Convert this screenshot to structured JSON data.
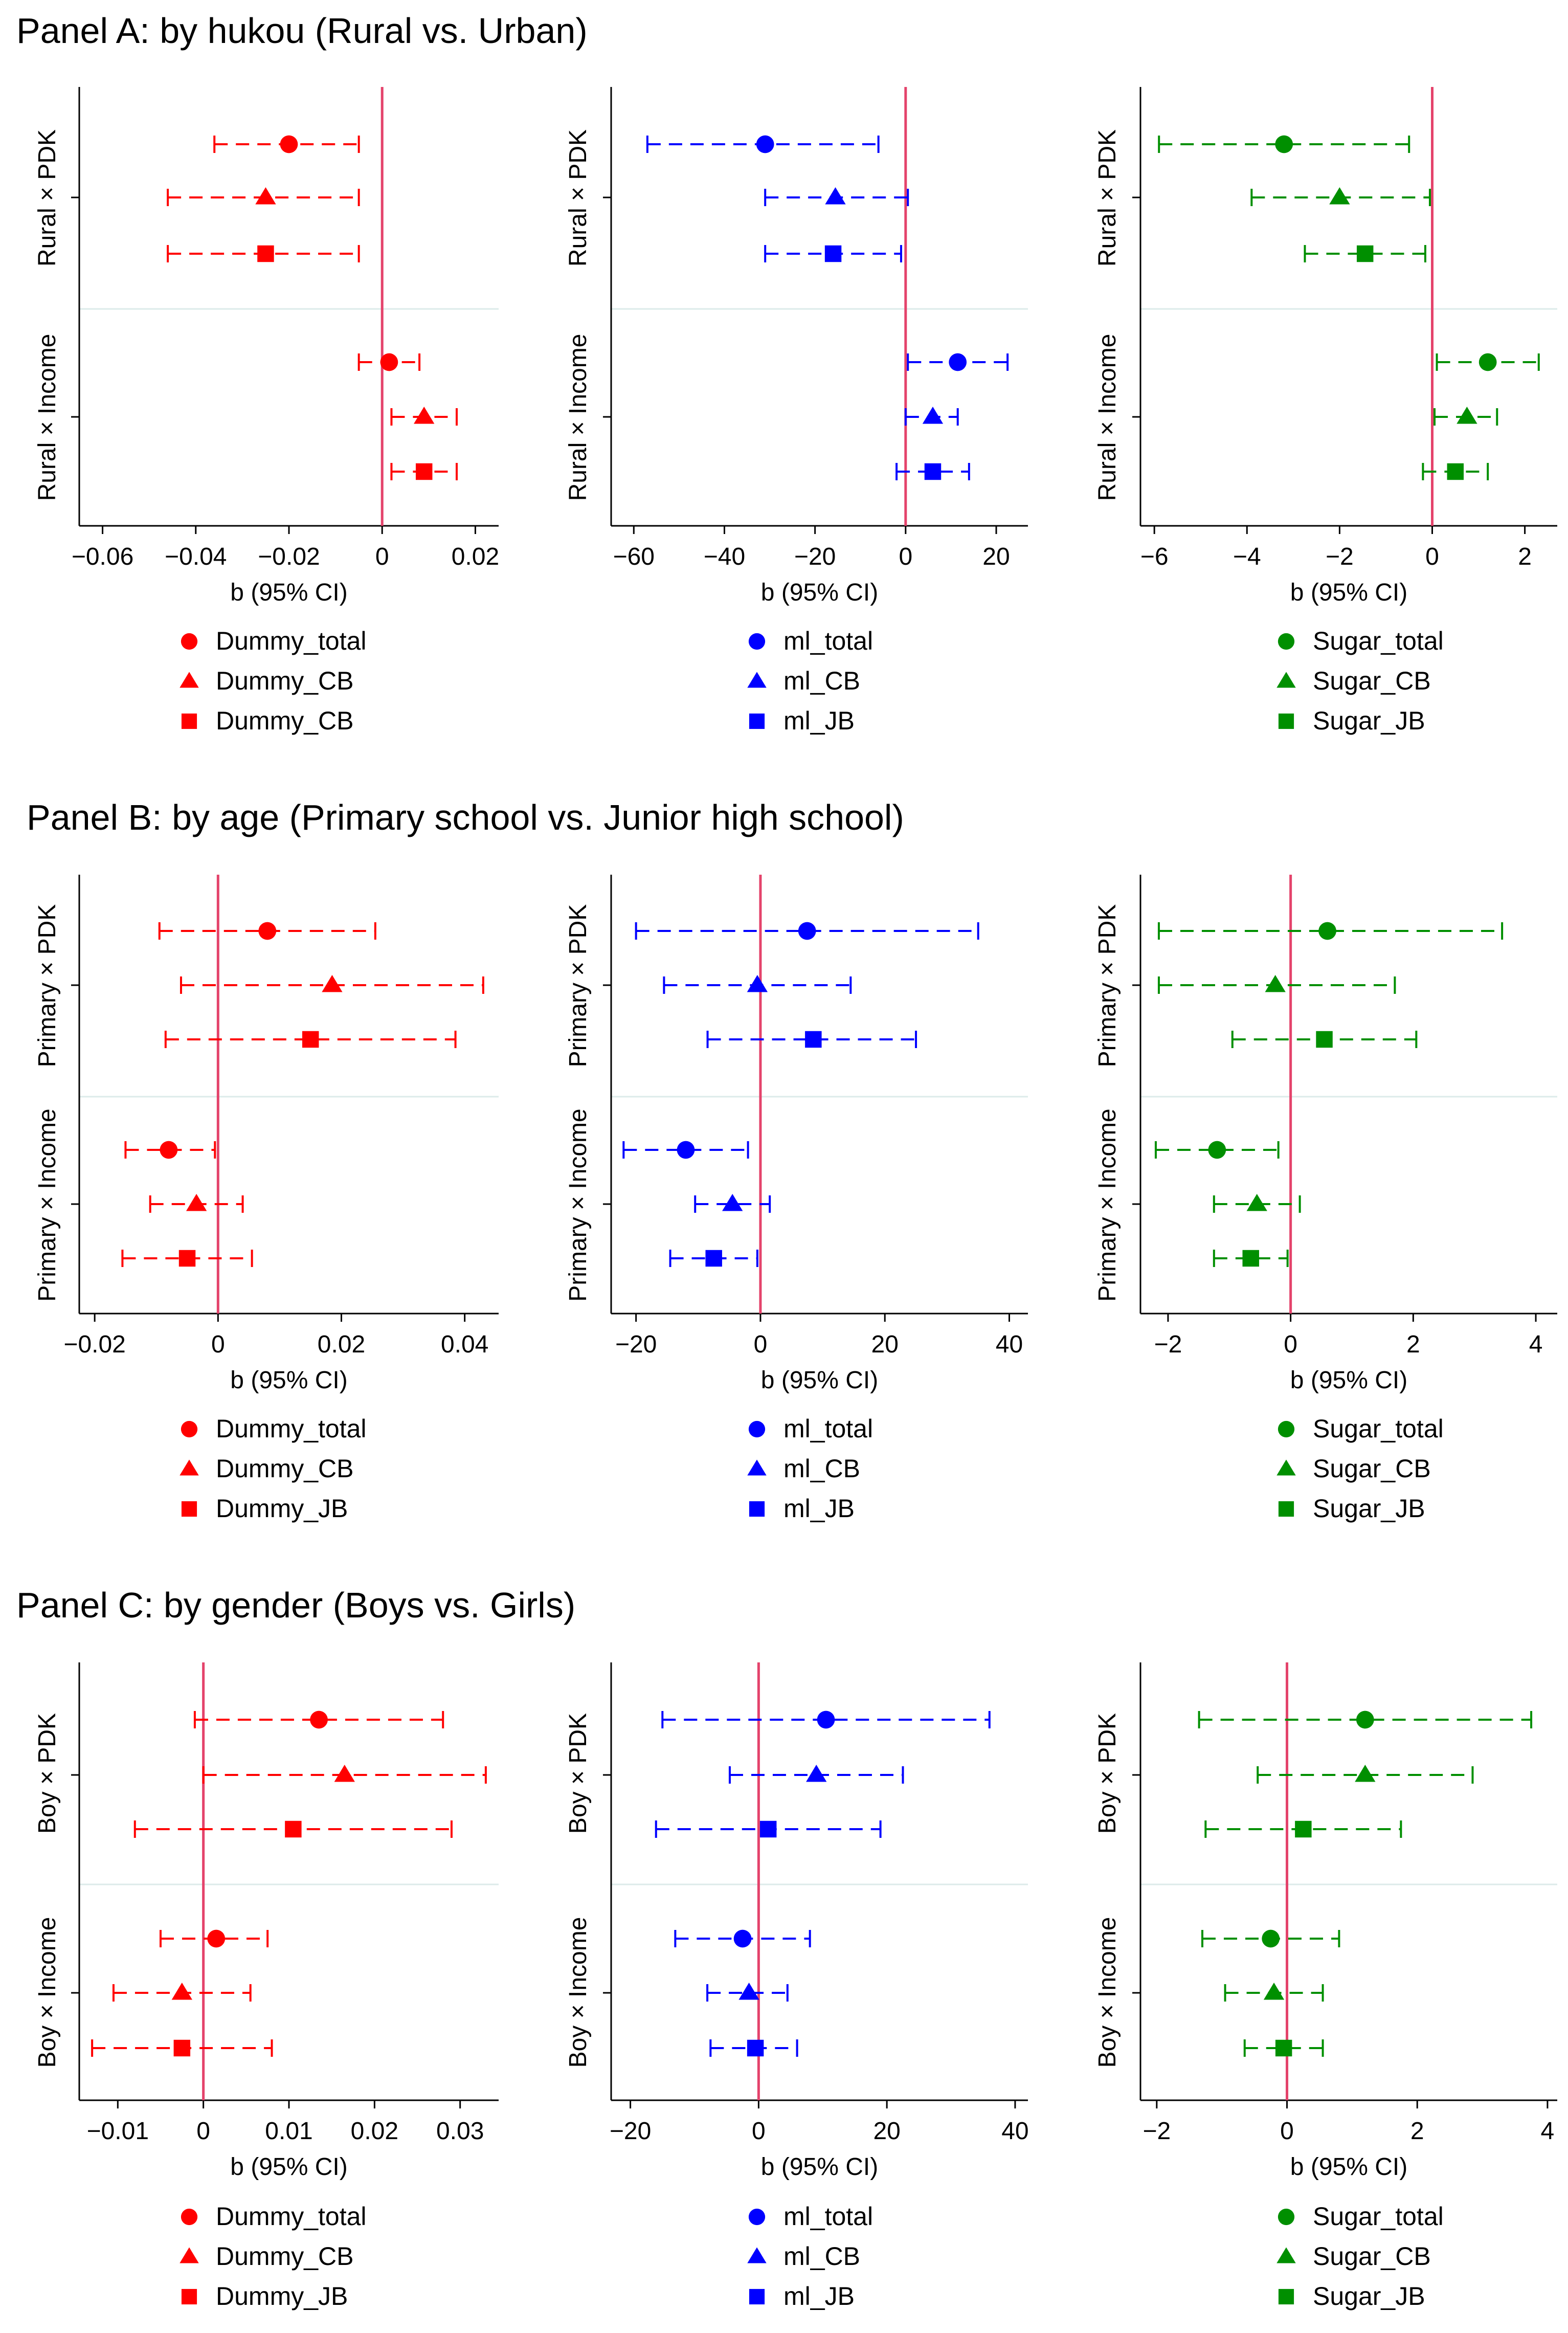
{
  "colors": {
    "red": "#ff0000",
    "blue": "#0000ff",
    "green": "#008f00",
    "zero_line": "#e4436b",
    "divider": "#dcebea"
  },
  "panels": [
    {
      "title": "Panel A: by hukou (Rural vs. Urban)"
    },
    {
      "title": "Panel B: by age (Primary school vs. Junior high school)"
    },
    {
      "title": "Panel C: by gender (Boys vs. Girls)"
    }
  ],
  "chart_data": [
    {
      "type": "coefficient_plot",
      "panel": 0,
      "column": 0,
      "color_key": "red",
      "xlabel": "b (95% CI)",
      "xlim": [
        -0.065,
        0.025
      ],
      "xticks": [
        {
          "v": -0.06,
          "label": "−0.06"
        },
        {
          "v": -0.04,
          "label": "−0.04"
        },
        {
          "v": -0.02,
          "label": "−0.02"
        },
        {
          "v": 0,
          "label": "0"
        },
        {
          "v": 0.02,
          "label": "0.02"
        }
      ],
      "groups": [
        "Rural × PDK",
        "Rural × Income"
      ],
      "legend": [
        "Dummy_total",
        "Dummy_CB",
        "Dummy_CB"
      ],
      "series": [
        {
          "name": "Dummy_total",
          "marker": "circle",
          "points": [
            {
              "b": -0.02,
              "lo": -0.036,
              "hi": -0.005
            },
            {
              "b": 0.0015,
              "lo": -0.005,
              "hi": 0.008
            }
          ]
        },
        {
          "name": "Dummy_CB",
          "marker": "triangle",
          "points": [
            {
              "b": -0.025,
              "lo": -0.046,
              "hi": -0.005
            },
            {
              "b": 0.009,
              "lo": 0.002,
              "hi": 0.016
            }
          ]
        },
        {
          "name": "Dummy_CB",
          "marker": "square",
          "points": [
            {
              "b": -0.025,
              "lo": -0.046,
              "hi": -0.005
            },
            {
              "b": 0.009,
              "lo": 0.002,
              "hi": 0.016
            }
          ]
        }
      ]
    },
    {
      "type": "coefficient_plot",
      "panel": 0,
      "column": 1,
      "color_key": "blue",
      "xlabel": "b (95% CI)",
      "xlim": [
        -65,
        27
      ],
      "xticks": [
        {
          "v": -60,
          "label": "−60"
        },
        {
          "v": -40,
          "label": "−40"
        },
        {
          "v": -20,
          "label": "−20"
        },
        {
          "v": 0,
          "label": "0"
        },
        {
          "v": 20,
          "label": "20"
        }
      ],
      "groups": [
        "Rural × PDK",
        "Rural × Income"
      ],
      "legend": [
        "ml_total",
        "ml_CB",
        "ml_JB"
      ],
      "series": [
        {
          "name": "ml_total",
          "marker": "circle",
          "points": [
            {
              "b": -31,
              "lo": -57,
              "hi": -6
            },
            {
              "b": 11.5,
              "lo": 0.5,
              "hi": 22.5
            }
          ]
        },
        {
          "name": "ml_CB",
          "marker": "triangle",
          "points": [
            {
              "b": -15.5,
              "lo": -31,
              "hi": 0.5
            },
            {
              "b": 6,
              "lo": 0,
              "hi": 11.5
            }
          ]
        },
        {
          "name": "ml_JB",
          "marker": "square",
          "points": [
            {
              "b": -16,
              "lo": -31,
              "hi": -1
            },
            {
              "b": 6,
              "lo": -2,
              "hi": 14
            }
          ]
        }
      ]
    },
    {
      "type": "coefficient_plot",
      "panel": 0,
      "column": 2,
      "color_key": "green",
      "xlabel": "b (95% CI)",
      "xlim": [
        -6.3,
        2.7
      ],
      "xticks": [
        {
          "v": -6,
          "label": "−6"
        },
        {
          "v": -4,
          "label": "−4"
        },
        {
          "v": -2,
          "label": "−2"
        },
        {
          "v": 0,
          "label": "0"
        },
        {
          "v": 2,
          "label": "2"
        }
      ],
      "groups": [
        "Rural × PDK",
        "Rural × Income"
      ],
      "legend": [
        "Sugar_total",
        "Sugar_CB",
        "Sugar_JB"
      ],
      "series": [
        {
          "name": "Sugar_total",
          "marker": "circle",
          "points": [
            {
              "b": -3.2,
              "lo": -5.9,
              "hi": -0.5
            },
            {
              "b": 1.2,
              "lo": 0.1,
              "hi": 2.3
            }
          ]
        },
        {
          "name": "Sugar_CB",
          "marker": "triangle",
          "points": [
            {
              "b": -2.0,
              "lo": -3.9,
              "hi": -0.05
            },
            {
              "b": 0.75,
              "lo": 0.05,
              "hi": 1.4
            }
          ]
        },
        {
          "name": "Sugar_JB",
          "marker": "square",
          "points": [
            {
              "b": -1.45,
              "lo": -2.75,
              "hi": -0.15
            },
            {
              "b": 0.5,
              "lo": -0.2,
              "hi": 1.2
            }
          ]
        }
      ]
    },
    {
      "type": "coefficient_plot",
      "panel": 1,
      "column": 0,
      "color_key": "red",
      "xlabel": "b (95% CI)",
      "xlim": [
        -0.0225,
        0.0455
      ],
      "xticks": [
        {
          "v": -0.02,
          "label": "−0.02"
        },
        {
          "v": 0,
          "label": "0"
        },
        {
          "v": 0.02,
          "label": "0.02"
        },
        {
          "v": 0.04,
          "label": "0.04"
        }
      ],
      "groups": [
        "Primary × PDK",
        "Primary × Income"
      ],
      "legend": [
        "Dummy_total",
        "Dummy_CB",
        "Dummy_JB"
      ],
      "series": [
        {
          "name": "Dummy_total",
          "marker": "circle",
          "points": [
            {
              "b": 0.008,
              "lo": -0.0095,
              "hi": 0.0255
            },
            {
              "b": -0.008,
              "lo": -0.015,
              "hi": -0.0005
            }
          ]
        },
        {
          "name": "Dummy_CB",
          "marker": "triangle",
          "points": [
            {
              "b": 0.0185,
              "lo": -0.006,
              "hi": 0.043
            },
            {
              "b": -0.0035,
              "lo": -0.011,
              "hi": 0.004
            }
          ]
        },
        {
          "name": "Dummy_JB",
          "marker": "square",
          "points": [
            {
              "b": 0.015,
              "lo": -0.0085,
              "hi": 0.0385
            },
            {
              "b": -0.005,
              "lo": -0.0155,
              "hi": 0.0055
            }
          ]
        }
      ]
    },
    {
      "type": "coefficient_plot",
      "panel": 1,
      "column": 1,
      "color_key": "blue",
      "xlabel": "b (95% CI)",
      "xlim": [
        -24,
        43
      ],
      "xticks": [
        {
          "v": -20,
          "label": "−20"
        },
        {
          "v": 0,
          "label": "0"
        },
        {
          "v": 20,
          "label": "20"
        },
        {
          "v": 40,
          "label": "40"
        }
      ],
      "groups": [
        "Primary × PDK",
        "Primary × Income"
      ],
      "legend": [
        "ml_total",
        "ml_CB",
        "ml_JB"
      ],
      "series": [
        {
          "name": "ml_total",
          "marker": "circle",
          "points": [
            {
              "b": 7.5,
              "lo": -20,
              "hi": 35
            },
            {
              "b": -12,
              "lo": -22,
              "hi": -2
            }
          ]
        },
        {
          "name": "ml_CB",
          "marker": "triangle",
          "points": [
            {
              "b": -0.5,
              "lo": -15.5,
              "hi": 14.5
            },
            {
              "b": -4.5,
              "lo": -10.5,
              "hi": 1.5
            }
          ]
        },
        {
          "name": "ml_JB",
          "marker": "square",
          "points": [
            {
              "b": 8.5,
              "lo": -8.5,
              "hi": 25
            },
            {
              "b": -7.5,
              "lo": -14.5,
              "hi": -0.5
            }
          ]
        }
      ]
    },
    {
      "type": "coefficient_plot",
      "panel": 1,
      "column": 2,
      "color_key": "green",
      "xlabel": "b (95% CI)",
      "xlim": [
        -2.45,
        4.35
      ],
      "xticks": [
        {
          "v": -2,
          "label": "−2"
        },
        {
          "v": 0,
          "label": "0"
        },
        {
          "v": 2,
          "label": "2"
        },
        {
          "v": 4,
          "label": "4"
        }
      ],
      "groups": [
        "Primary × PDK",
        "Primary × Income"
      ],
      "legend": [
        "Sugar_total",
        "Sugar_CB",
        "Sugar_JB"
      ],
      "series": [
        {
          "name": "Sugar_total",
          "marker": "circle",
          "points": [
            {
              "b": 0.6,
              "lo": -2.15,
              "hi": 3.45
            },
            {
              "b": -1.2,
              "lo": -2.2,
              "hi": -0.2
            }
          ]
        },
        {
          "name": "Sugar_CB",
          "marker": "triangle",
          "points": [
            {
              "b": -0.25,
              "lo": -2.15,
              "hi": 1.7
            },
            {
              "b": -0.55,
              "lo": -1.25,
              "hi": 0.15
            }
          ]
        },
        {
          "name": "Sugar_JB",
          "marker": "square",
          "points": [
            {
              "b": 0.55,
              "lo": -0.95,
              "hi": 2.05
            },
            {
              "b": -0.65,
              "lo": -1.25,
              "hi": -0.05
            }
          ]
        }
      ]
    },
    {
      "type": "coefficient_plot",
      "panel": 2,
      "column": 0,
      "color_key": "red",
      "xlabel": "b (95% CI)",
      "xlim": [
        -0.0145,
        0.0345
      ],
      "xticks": [
        {
          "v": -0.01,
          "label": "−0.01"
        },
        {
          "v": 0,
          "label": "0"
        },
        {
          "v": 0.01,
          "label": "0.01"
        },
        {
          "v": 0.02,
          "label": "0.02"
        },
        {
          "v": 0.03,
          "label": "0.03"
        }
      ],
      "groups": [
        "Boy × PDK",
        "Boy × Income"
      ],
      "legend": [
        "Dummy_total",
        "Dummy_CB",
        "Dummy_JB"
      ],
      "series": [
        {
          "name": "Dummy_total",
          "marker": "circle",
          "points": [
            {
              "b": 0.0135,
              "lo": -0.001,
              "hi": 0.028
            },
            {
              "b": 0.0015,
              "lo": -0.005,
              "hi": 0.0075
            }
          ]
        },
        {
          "name": "Dummy_CB",
          "marker": "triangle",
          "points": [
            {
              "b": 0.0165,
              "lo": 0,
              "hi": 0.033
            },
            {
              "b": -0.0025,
              "lo": -0.0105,
              "hi": 0.0055
            }
          ]
        },
        {
          "name": "Dummy_JB",
          "marker": "square",
          "points": [
            {
              "b": 0.0105,
              "lo": -0.008,
              "hi": 0.029
            },
            {
              "b": -0.0025,
              "lo": -0.013,
              "hi": 0.008
            }
          ]
        }
      ]
    },
    {
      "type": "coefficient_plot",
      "panel": 2,
      "column": 1,
      "color_key": "blue",
      "xlabel": "b (95% CI)",
      "xlim": [
        -23,
        42
      ],
      "xticks": [
        {
          "v": -20,
          "label": "−20"
        },
        {
          "v": 0,
          "label": "0"
        },
        {
          "v": 20,
          "label": "20"
        },
        {
          "v": 40,
          "label": "40"
        }
      ],
      "groups": [
        "Boy × PDK",
        "Boy × Income"
      ],
      "legend": [
        "ml_total",
        "ml_CB",
        "ml_JB"
      ],
      "series": [
        {
          "name": "ml_total",
          "marker": "circle",
          "points": [
            {
              "b": 10.5,
              "lo": -15,
              "hi": 36
            },
            {
              "b": -2.5,
              "lo": -13,
              "hi": 8
            }
          ]
        },
        {
          "name": "ml_CB",
          "marker": "triangle",
          "points": [
            {
              "b": 9,
              "lo": -4.5,
              "hi": 22.5
            },
            {
              "b": -1.5,
              "lo": -8,
              "hi": 4.5
            }
          ]
        },
        {
          "name": "ml_JB",
          "marker": "square",
          "points": [
            {
              "b": 1.5,
              "lo": -16,
              "hi": 19
            },
            {
              "b": -0.5,
              "lo": -7.5,
              "hi": 6
            }
          ]
        }
      ]
    },
    {
      "type": "coefficient_plot",
      "panel": 2,
      "column": 2,
      "color_key": "green",
      "xlabel": "b (95% CI)",
      "xlim": [
        -2.25,
        4.15
      ],
      "xticks": [
        {
          "v": -2,
          "label": "−2"
        },
        {
          "v": 0,
          "label": "0"
        },
        {
          "v": 2,
          "label": "2"
        },
        {
          "v": 4,
          "label": "4"
        }
      ],
      "groups": [
        "Boy × PDK",
        "Boy × Income"
      ],
      "legend": [
        "Sugar_total",
        "Sugar_CB",
        "Sugar_JB"
      ],
      "series": [
        {
          "name": "Sugar_total",
          "marker": "circle",
          "points": [
            {
              "b": 1.2,
              "lo": -1.35,
              "hi": 3.75
            },
            {
              "b": -0.25,
              "lo": -1.3,
              "hi": 0.8
            }
          ]
        },
        {
          "name": "Sugar_CB",
          "marker": "triangle",
          "points": [
            {
              "b": 1.2,
              "lo": -0.45,
              "hi": 2.85
            },
            {
              "b": -0.2,
              "lo": -0.95,
              "hi": 0.55
            }
          ]
        },
        {
          "name": "Sugar_JB",
          "marker": "square",
          "points": [
            {
              "b": 0.25,
              "lo": -1.25,
              "hi": 1.75
            },
            {
              "b": -0.05,
              "lo": -0.65,
              "hi": 0.55
            }
          ]
        }
      ]
    }
  ]
}
